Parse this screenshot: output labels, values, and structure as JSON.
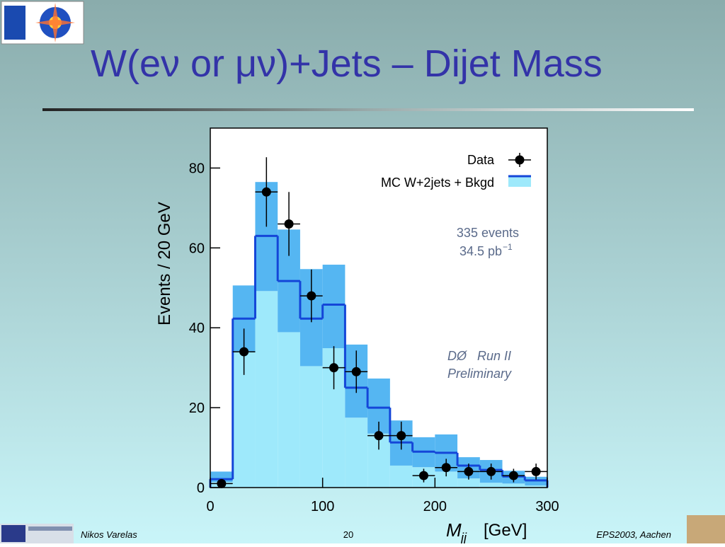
{
  "title": "W(eν or μν)+Jets – Dijet Mass",
  "chart_data": {
    "type": "histogram",
    "y_label": "Events / 20 GeV",
    "x_label": {
      "symbol": "M",
      "subscript": "jj",
      "unit": "[GeV]"
    },
    "bins": [
      0,
      20,
      40,
      60,
      80,
      100,
      120,
      140,
      160,
      180,
      200,
      220,
      240,
      260,
      280,
      300
    ],
    "xlim": [
      0,
      300
    ],
    "xticks": [
      0,
      100,
      200,
      300
    ],
    "ylim": [
      0,
      90
    ],
    "yticks": [
      0,
      20,
      40,
      60,
      80
    ],
    "series": [
      {
        "name": "Data",
        "color": "#000000",
        "values": [
          1,
          34,
          74,
          66,
          48,
          30,
          29,
          13,
          13,
          3,
          5,
          4,
          4,
          3,
          4
        ],
        "errors": [
          1,
          5.8,
          8.7,
          8,
          6.6,
          5.4,
          5.3,
          3.5,
          3.5,
          1.7,
          2.2,
          2,
          2,
          1.7,
          2
        ]
      },
      {
        "name": "MC W+2jets + Bkgd",
        "color": "#1446d8",
        "band_color": "#55b6f2",
        "fill_color": "#9ee9fb",
        "values": [
          2.1,
          42.3,
          63,
          51.7,
          42.3,
          45.8,
          25,
          20,
          11.3,
          9,
          8.7,
          5.5,
          4.4,
          2.8,
          1.8
        ],
        "band_low": [
          1.4,
          34,
          49.2,
          38.9,
          30.4,
          34.9,
          17.5,
          13.5,
          5.5,
          5.1,
          4,
          2.3,
          1.2,
          1,
          0.5
        ],
        "band_high": [
          4,
          50.6,
          76.5,
          64.6,
          54.7,
          55.8,
          35.8,
          27.3,
          16.8,
          12.6,
          13.3,
          7.6,
          6.9,
          4.2,
          2.7
        ]
      }
    ],
    "annotations": {
      "events": "335 events",
      "lumi": "34.5 pb",
      "lumi_exp": "−1",
      "experiment": "DØ   Run II",
      "status": "Preliminary"
    }
  },
  "footer": {
    "author": "Nikos Varelas",
    "page": "20",
    "event": "EPS2003, Aachen"
  }
}
